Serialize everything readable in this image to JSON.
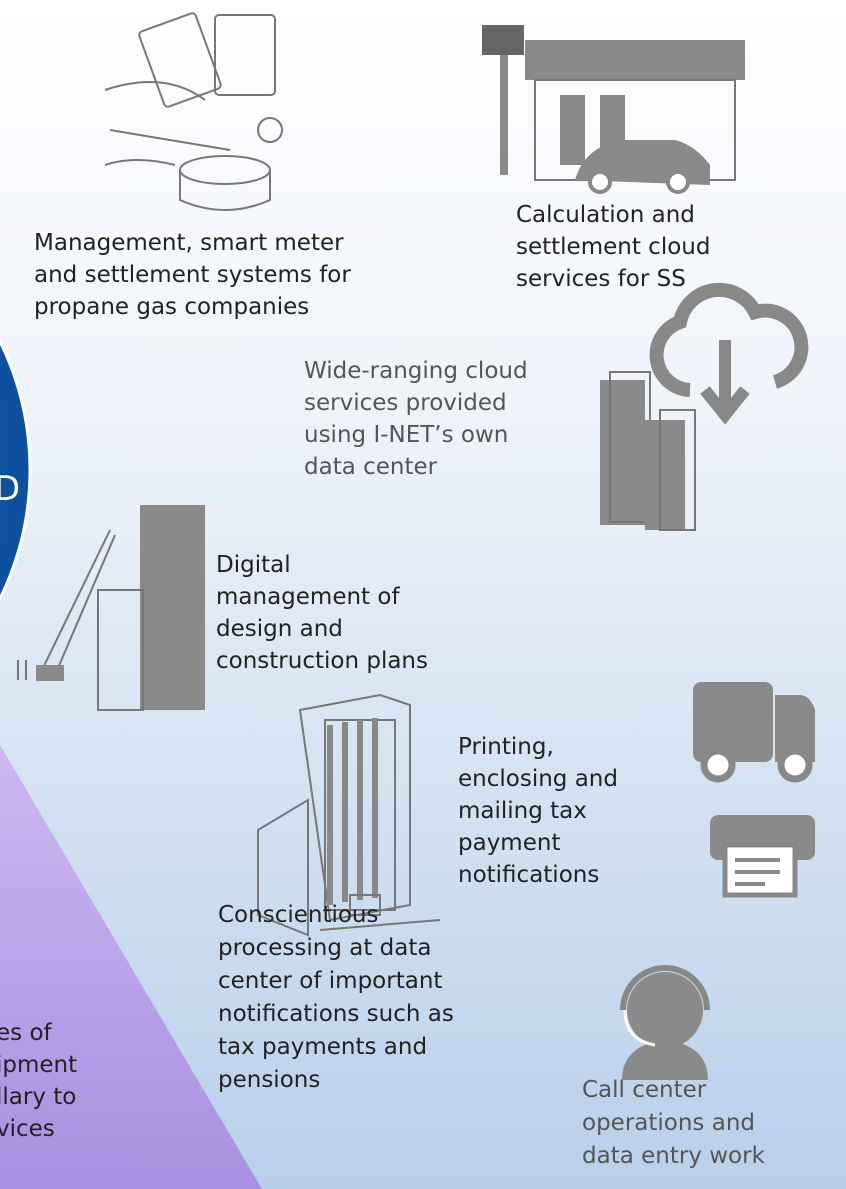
{
  "items": [
    {
      "lines": [
        "Management, smart meter",
        "and settlement systems for",
        "propane gas companies"
      ]
    },
    {
      "lines": [
        "Calculation and",
        "settlement cloud",
        "services for SS"
      ]
    },
    {
      "lines": [
        "Wide-ranging cloud",
        "services provided",
        "using I-NET’s own",
        "data center"
      ]
    },
    {
      "lines": [
        "Digital",
        "management of",
        "design and",
        "construction plans"
      ]
    },
    {
      "lines": [
        "Printing,",
        "enclosing and",
        "mailing tax",
        "payment",
        "notifications"
      ]
    },
    {
      "lines": [
        "Conscientious",
        "processing at data",
        "center of important",
        "notifications such as",
        "tax payments and",
        "pensions"
      ]
    },
    {
      "lines": [
        "Call center",
        "operations and",
        "data entry work"
      ]
    }
  ],
  "circle_text": "D",
  "partial": {
    "lines": [
      "es of",
      "ipment",
      "llary to",
      "vices"
    ]
  }
}
